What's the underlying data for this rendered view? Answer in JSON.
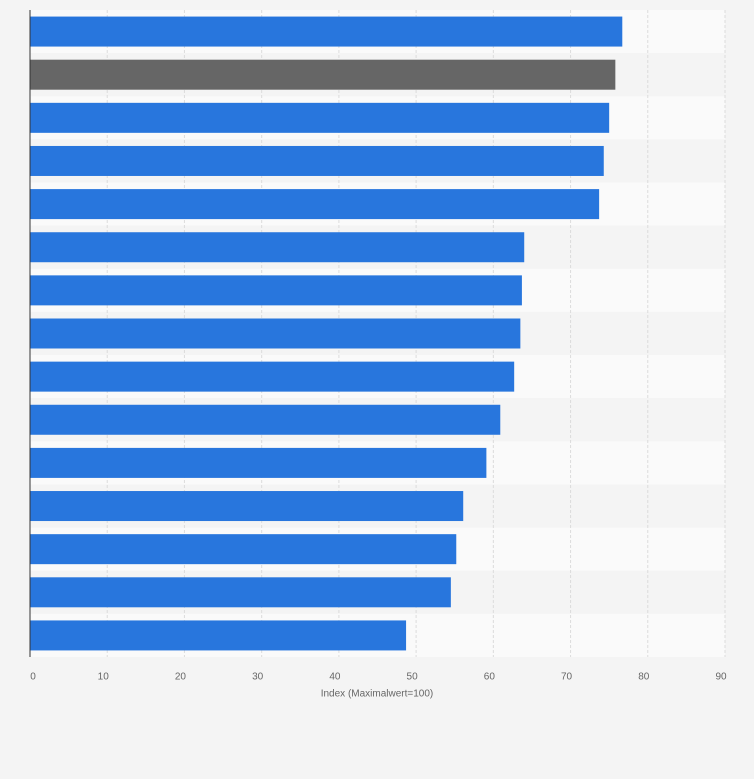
{
  "chart_data": {
    "type": "bar",
    "orientation": "horizontal",
    "categories": [
      null,
      null,
      null,
      null,
      null,
      null,
      null,
      null,
      null,
      null,
      null,
      null,
      null,
      null,
      null
    ],
    "values": [
      76.7,
      75.8,
      75.0,
      74.3,
      73.7,
      64.0,
      63.7,
      63.5,
      62.7,
      60.9,
      59.1,
      56.1,
      55.2,
      54.5,
      48.7
    ],
    "colors": [
      "#2876dd",
      "#666666",
      "#2876dd",
      "#2876dd",
      "#2876dd",
      "#2876dd",
      "#2876dd",
      "#2876dd",
      "#2876dd",
      "#2876dd",
      "#2876dd",
      "#2876dd",
      "#2876dd",
      "#2876dd",
      "#2876dd"
    ],
    "xlabel": "Index (Maximalwert=100)",
    "xlim": [
      0,
      90
    ],
    "xticks": [
      0,
      10,
      20,
      30,
      40,
      50,
      60,
      70,
      80,
      90
    ],
    "grid": true
  }
}
